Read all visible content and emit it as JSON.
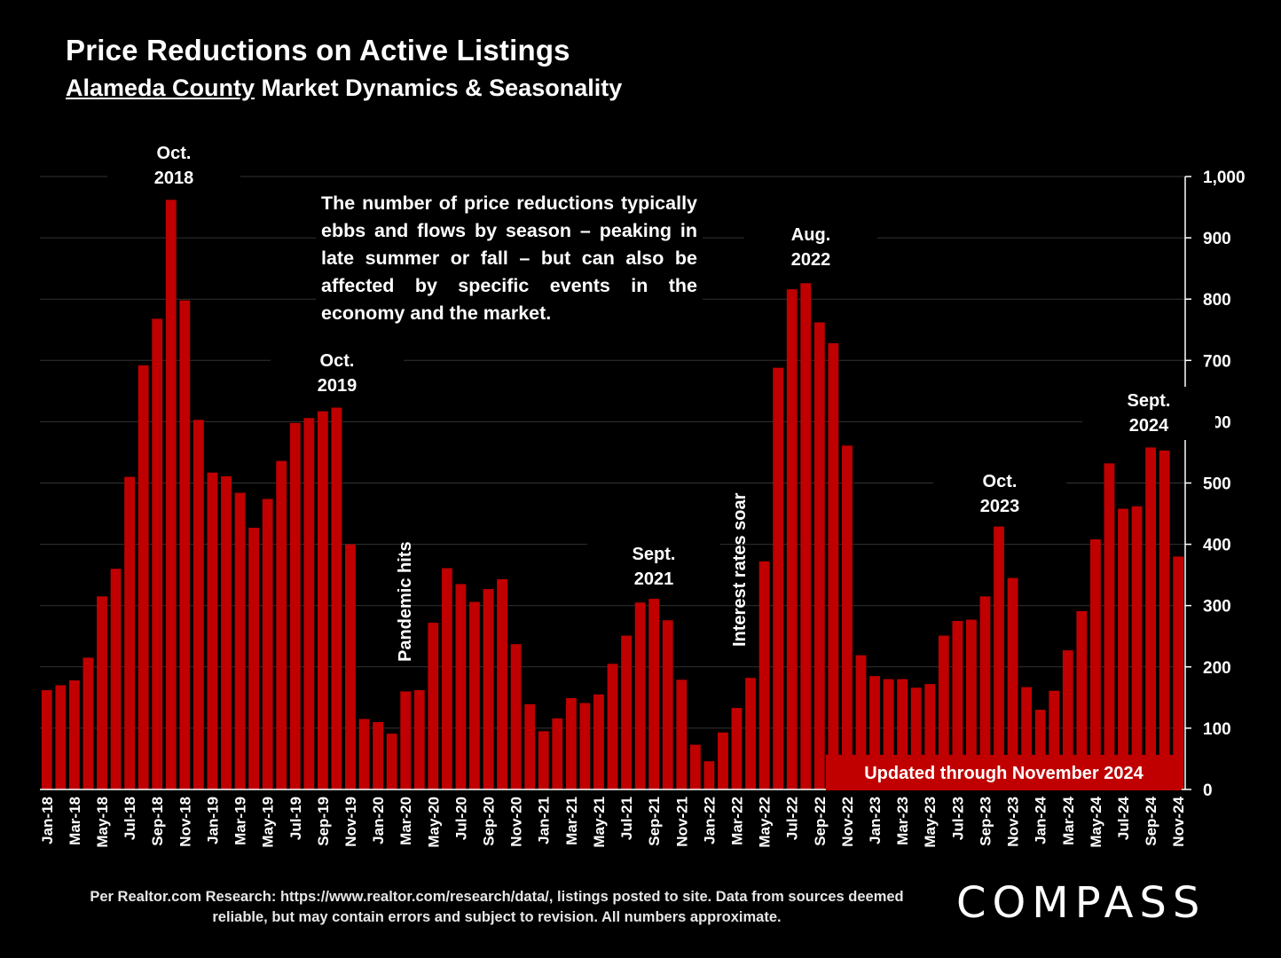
{
  "header": {
    "title": "Price Reductions on Active Listings",
    "subtitle_underlined": "Alameda County",
    "subtitle_rest": " Market Dynamics & Seasonality"
  },
  "callout": "The number of price reductions typically ebbs and flows by season – peaking in late summer or fall – but can also be affected by specific events in the economy and the market.",
  "annotations": {
    "oct2018": "Oct.\n2018",
    "oct2019": "Oct.\n2019",
    "sept2021": "Sept.\n2021",
    "aug2022": "Aug.\n2022",
    "oct2023": "Oct.\n2023",
    "sept2024": "Sept.\n2024",
    "pandemic": "Pandemic hits",
    "rates": "Interest rates soar"
  },
  "updated_label": "Updated through November 2024",
  "footer": "Per Realtor.com Research:  https://www.realtor.com/research/data/, listings posted to site. Data from sources deemed reliable, but may contain errors and subject to revision. All numbers approximate.",
  "logo": "COMPASS",
  "colors": {
    "bar": "#c00000",
    "background": "#000000",
    "grid": "#333333"
  },
  "chart_data": {
    "type": "bar",
    "ylim": [
      0,
      1000
    ],
    "yticks": [
      "0",
      "100",
      "200",
      "300",
      "400",
      "500",
      "600",
      "700",
      "800",
      "900",
      "1,000"
    ],
    "y_axis_side": "right",
    "grid": true,
    "categories": [
      "Jan-18",
      "Feb-18",
      "Mar-18",
      "Apr-18",
      "May-18",
      "Jun-18",
      "Jul-18",
      "Aug-18",
      "Sep-18",
      "Oct-18",
      "Nov-18",
      "Dec-18",
      "Jan-19",
      "Feb-19",
      "Mar-19",
      "Apr-19",
      "May-19",
      "Jun-19",
      "Jul-19",
      "Aug-19",
      "Sep-19",
      "Oct-19",
      "Nov-19",
      "Dec-19",
      "Jan-20",
      "Feb-20",
      "Mar-20",
      "Apr-20",
      "May-20",
      "Jun-20",
      "Jul-20",
      "Aug-20",
      "Sep-20",
      "Oct-20",
      "Nov-20",
      "Dec-20",
      "Jan-21",
      "Feb-21",
      "Mar-21",
      "Apr-21",
      "May-21",
      "Jun-21",
      "Jul-21",
      "Aug-21",
      "Sep-21",
      "Oct-21",
      "Nov-21",
      "Dec-21",
      "Jan-22",
      "Feb-22",
      "Mar-22",
      "Apr-22",
      "May-22",
      "Jun-22",
      "Jul-22",
      "Aug-22",
      "Sep-22",
      "Oct-22",
      "Nov-22",
      "Dec-22",
      "Jan-23",
      "Feb-23",
      "Mar-23",
      "Apr-23",
      "May-23",
      "Jun-23",
      "Jul-23",
      "Aug-23",
      "Sep-23",
      "Oct-23",
      "Nov-23",
      "Dec-23",
      "Jan-24",
      "Feb-24",
      "Mar-24",
      "Apr-24",
      "May-24",
      "Jun-24",
      "Jul-24",
      "Aug-24",
      "Sep-24",
      "Oct-24",
      "Nov-24"
    ],
    "xtick_labels": [
      "Jan-18",
      "Mar-18",
      "May-18",
      "Jul-18",
      "Sep-18",
      "Nov-18",
      "Jan-19",
      "Mar-19",
      "May-19",
      "Jul-19",
      "Sep-19",
      "Nov-19",
      "Jan-20",
      "Mar-20",
      "May-20",
      "Jul-20",
      "Sep-20",
      "Nov-20",
      "Jan-21",
      "Mar-21",
      "May-21",
      "Jul-21",
      "Sep-21",
      "Nov-21",
      "Jan-22",
      "Mar-22",
      "May-22",
      "Jul-22",
      "Sep-22",
      "Nov-22",
      "Jan-23",
      "Mar-23",
      "May-23",
      "Jul-23",
      "Sep-23",
      "Nov-23",
      "Jan-24",
      "Mar-24",
      "May-24",
      "Jul-24",
      "Sep-24",
      "Nov-24"
    ],
    "values": [
      162,
      170,
      178,
      215,
      315,
      360,
      510,
      692,
      768,
      962,
      798,
      603,
      517,
      511,
      484,
      427,
      474,
      536,
      598,
      606,
      617,
      623,
      400,
      115,
      110,
      91,
      160,
      162,
      272,
      361,
      335,
      306,
      327,
      343,
      237,
      139,
      95,
      116,
      149,
      141,
      155,
      205,
      251,
      305,
      311,
      276,
      179,
      73,
      46,
      93,
      133,
      182,
      372,
      688,
      816,
      826,
      762,
      728,
      561,
      219,
      185,
      180,
      180,
      166,
      172,
      251,
      275,
      277,
      315,
      429,
      345,
      167,
      130,
      161,
      227,
      291,
      408,
      532,
      458,
      462,
      558,
      553,
      380
    ]
  }
}
